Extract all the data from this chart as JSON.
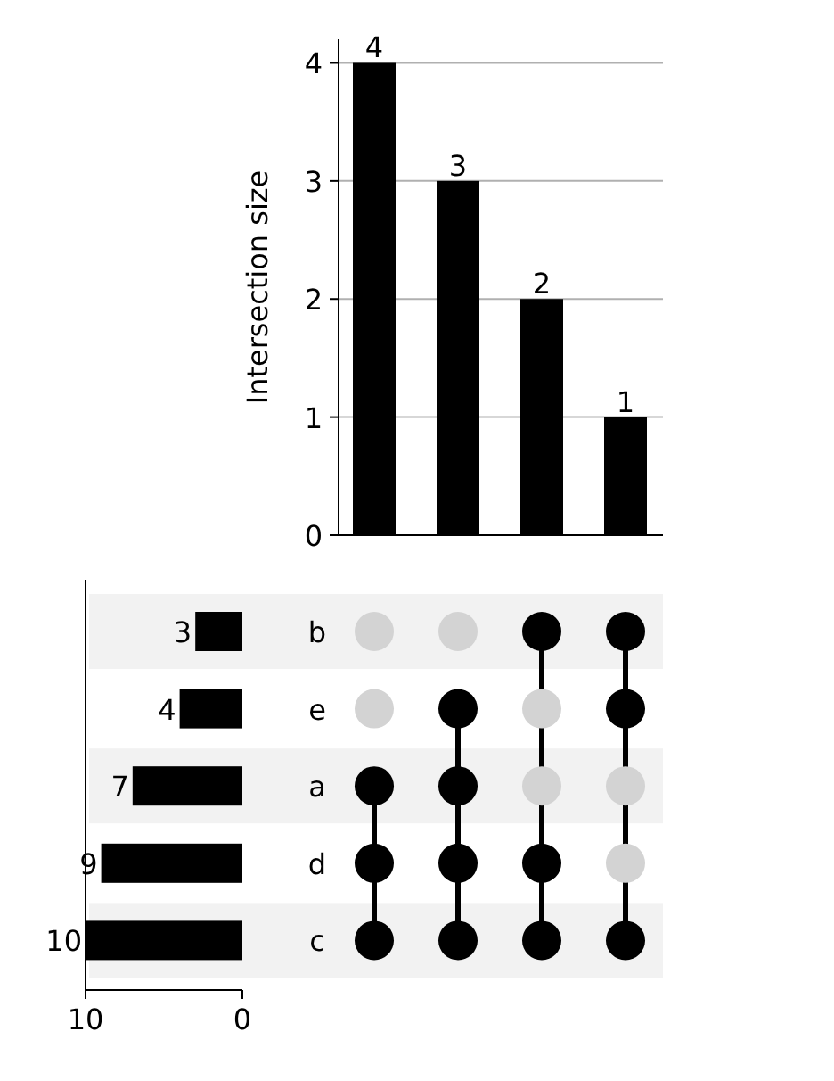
{
  "chart_data": [
    {
      "type": "bar",
      "ylabel": "Intersection size",
      "categories": [
        null,
        null,
        null,
        null
      ],
      "values": [
        4,
        3,
        2,
        1
      ],
      "color": "#000000",
      "ylim": [
        0,
        4.2
      ],
      "yticks": [
        0,
        1,
        2,
        3,
        4
      ],
      "grid": "y",
      "data_labels": true
    },
    {
      "type": "bar",
      "orientation": "horizontal",
      "categories": [
        "b",
        "e",
        "a",
        "d",
        "c"
      ],
      "values": [
        3,
        4,
        7,
        9,
        10
      ],
      "color": "#000000",
      "xlim": [
        10,
        0
      ],
      "xticks": [
        10,
        0
      ],
      "data_labels": true
    },
    {
      "type": "other",
      "cells": [
        [
          false,
          false,
          true,
          true
        ],
        [
          false,
          true,
          false,
          true
        ],
        [
          true,
          true,
          false,
          false
        ],
        [
          true,
          true,
          true,
          false
        ],
        [
          true,
          true,
          true,
          true
        ]
      ],
      "color": "#000000"
    }
  ]
}
